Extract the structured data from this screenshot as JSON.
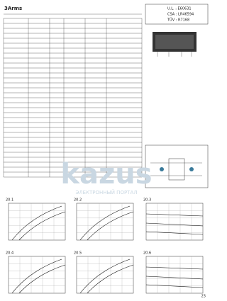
{
  "header": {
    "title": "3Arms",
    "approvals": [
      "U.L. : E60631",
      "CSA : LR46594",
      "TÜV : R7168"
    ]
  },
  "watermark": {
    "logo": "kazus",
    "subtitle": "ЭЛЕКТРОННЫЙ ПОРТАЛ"
  },
  "figures": [
    {
      "label": "20.1"
    },
    {
      "label": "20.2"
    },
    {
      "label": "20.3"
    },
    {
      "label": "20.4"
    },
    {
      "label": "20.5"
    },
    {
      "label": "20.6"
    }
  ],
  "page_number": "23"
}
